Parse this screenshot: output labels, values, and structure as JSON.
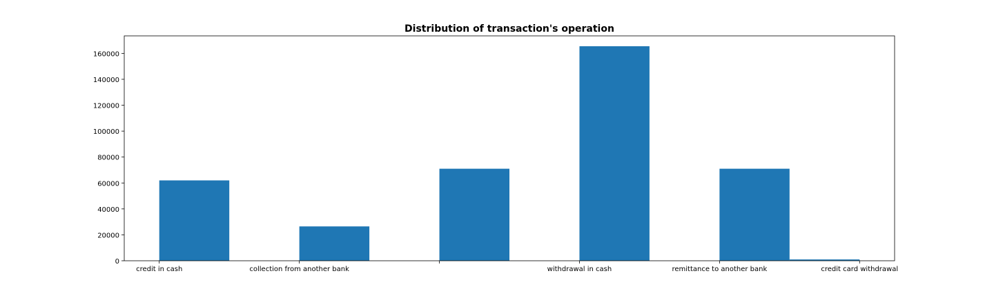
{
  "chart_data": {
    "type": "bar",
    "title": "Distribution of transaction's operation",
    "xlabel": "",
    "ylabel": "",
    "xticks": [
      {
        "label": "credit in cash",
        "x": 0
      },
      {
        "label": "collection from another bank",
        "x": 1
      },
      {
        "label": "",
        "x": 2
      },
      {
        "label": "withdrawal in cash",
        "x": 3
      },
      {
        "label": "remittance to another bank",
        "x": 4
      },
      {
        "label": "credit card withdrawal",
        "x": 5
      }
    ],
    "xlim": [
      -0.25,
      5.25
    ],
    "bars": [
      {
        "left": 0.0,
        "width": 0.5,
        "value": 62000
      },
      {
        "left": 1.0,
        "width": 0.5,
        "value": 26500
      },
      {
        "left": 2.0,
        "width": 0.5,
        "value": 71000
      },
      {
        "left": 3.0,
        "width": 0.5,
        "value": 165500
      },
      {
        "left": 4.0,
        "width": 0.5,
        "value": 71000
      },
      {
        "left": 4.5,
        "width": 0.5,
        "value": 1000
      }
    ],
    "yticks": [
      0,
      20000,
      40000,
      60000,
      80000,
      100000,
      120000,
      140000,
      160000
    ],
    "ylim": [
      0,
      173500
    ],
    "grid": false,
    "bar_color": "#1f77b4"
  }
}
